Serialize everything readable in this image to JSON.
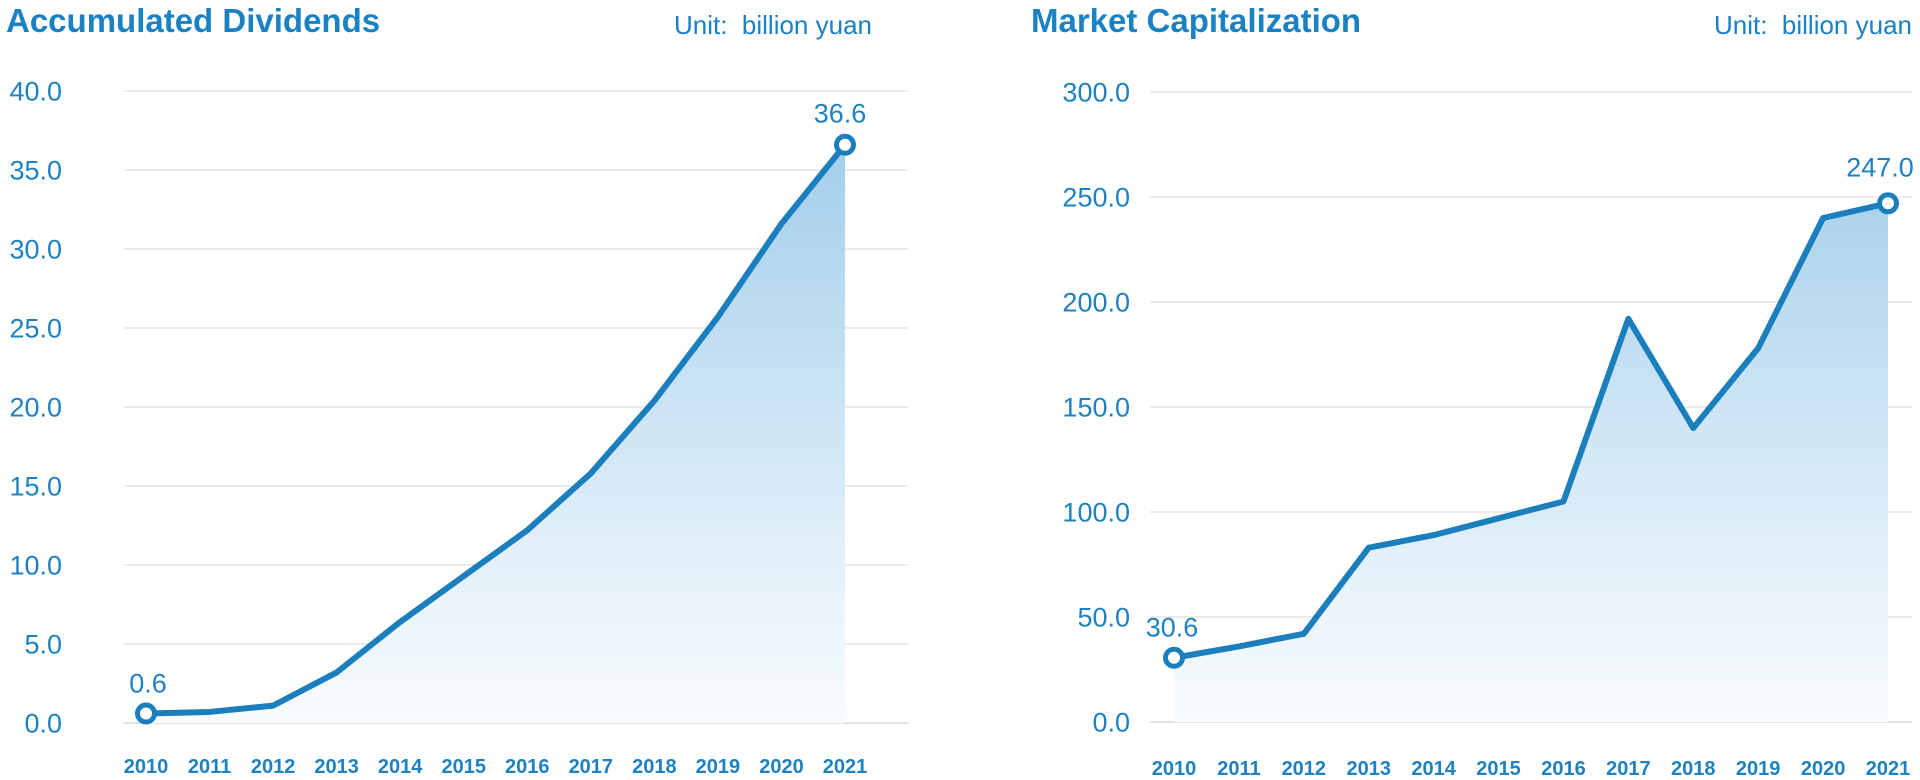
{
  "page": {
    "background": "#ffffff"
  },
  "colors": {
    "title_blue": "#1a81c2",
    "axis_text_blue": "#1e81c0",
    "line_blue": "#1b7fbe",
    "grid_line": "#ebebeb",
    "baseline": "#e2e2e2",
    "marker_fill": "#ffffff",
    "area_gradient_top": "#9acae8",
    "area_gradient_mid": "#c2dff2",
    "area_gradient_low": "#e4f1fa",
    "area_gradient_bottom": "#f8fcfe"
  },
  "chart_data": [
    {
      "type": "area",
      "title": "Accumulated Dividends",
      "unit_label": "Unit:  billion yuan",
      "categories": [
        "2010",
        "2011",
        "2012",
        "2013",
        "2014",
        "2015",
        "2016",
        "2017",
        "2018",
        "2019",
        "2020",
        "2021"
      ],
      "values": [
        0.6,
        0.7,
        1.1,
        3.2,
        6.4,
        9.3,
        12.2,
        15.8,
        20.4,
        25.7,
        31.6,
        36.6
      ],
      "xlabel": "",
      "ylabel": "",
      "ylim": [
        0,
        40
      ],
      "ytick_step": 5,
      "yticks": [
        {
          "value": 40,
          "label": "40.0"
        },
        {
          "value": 35,
          "label": "35.0"
        },
        {
          "value": 30,
          "label": "30.0"
        },
        {
          "value": 25,
          "label": "25.0"
        },
        {
          "value": 20,
          "label": "20.0"
        },
        {
          "value": 15,
          "label": "15.0"
        },
        {
          "value": 10,
          "label": "10.0"
        },
        {
          "value": 5,
          "label": "5.0"
        },
        {
          "value": 0,
          "label": "0.0"
        }
      ],
      "first_point_label": "0.6",
      "last_point_label": "36.6",
      "markers": "first-and-last-only",
      "grid": true,
      "legend": "none"
    },
    {
      "type": "area",
      "title": "Market Capitalization",
      "unit_label": "Unit:  billion yuan",
      "categories": [
        "2010",
        "2011",
        "2012",
        "2013",
        "2014",
        "2015",
        "2016",
        "2017",
        "2018",
        "2019",
        "2020",
        "2021"
      ],
      "values": [
        30.6,
        36,
        42,
        83,
        89,
        97,
        105,
        192,
        140,
        178,
        240,
        247
      ],
      "xlabel": "",
      "ylabel": "",
      "ylim": [
        0,
        300
      ],
      "ytick_step": 50,
      "yticks": [
        {
          "value": 300,
          "label": "300.0"
        },
        {
          "value": 250,
          "label": "250.0"
        },
        {
          "value": 200,
          "label": "200.0"
        },
        {
          "value": 150,
          "label": "150.0"
        },
        {
          "value": 100,
          "label": "100.0"
        },
        {
          "value": 50,
          "label": "50.0"
        },
        {
          "value": 0,
          "label": "0.0"
        }
      ],
      "first_point_label": "30.6",
      "last_point_label": "247.0",
      "markers": "first-and-last-only",
      "grid": true,
      "legend": "none"
    }
  ]
}
